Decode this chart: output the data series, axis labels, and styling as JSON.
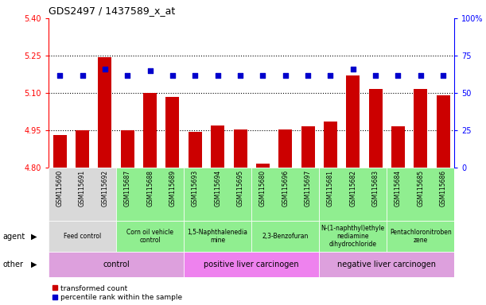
{
  "title": "GDS2497 / 1437589_x_at",
  "samples": [
    "GSM115690",
    "GSM115691",
    "GSM115692",
    "GSM115687",
    "GSM115688",
    "GSM115689",
    "GSM115693",
    "GSM115694",
    "GSM115695",
    "GSM115680",
    "GSM115696",
    "GSM115697",
    "GSM115681",
    "GSM115682",
    "GSM115683",
    "GSM115684",
    "GSM115685",
    "GSM115686"
  ],
  "bar_values": [
    4.93,
    4.95,
    5.245,
    4.95,
    5.1,
    5.085,
    4.945,
    4.97,
    4.955,
    4.815,
    4.955,
    4.965,
    4.985,
    5.17,
    5.115,
    4.965,
    5.115,
    5.09
  ],
  "percentile_values": [
    62,
    62,
    66,
    62,
    65,
    62,
    62,
    62,
    62,
    62,
    62,
    62,
    62,
    66,
    62,
    62,
    62,
    62
  ],
  "ylim_left": [
    4.8,
    5.4
  ],
  "ylim_right": [
    0,
    100
  ],
  "yticks_left": [
    4.8,
    4.95,
    5.1,
    5.25,
    5.4
  ],
  "yticks_right": [
    0,
    25,
    50,
    75,
    100
  ],
  "bar_color": "#cc0000",
  "dot_color": "#0000cc",
  "grid_values": [
    4.95,
    5.1,
    5.25
  ],
  "agent_groups": [
    {
      "label": "Feed control",
      "start": 0,
      "end": 3,
      "color": "#d9d9d9"
    },
    {
      "label": "Corn oil vehicle\ncontrol",
      "start": 3,
      "end": 6,
      "color": "#90ee90"
    },
    {
      "label": "1,5-Naphthalenedia\nmine",
      "start": 6,
      "end": 9,
      "color": "#90ee90"
    },
    {
      "label": "2,3-Benzofuran",
      "start": 9,
      "end": 12,
      "color": "#90ee90"
    },
    {
      "label": "N-(1-naphthyl)ethyle\nnediamine\ndihydrochloride",
      "start": 12,
      "end": 15,
      "color": "#90ee90"
    },
    {
      "label": "Pentachloronitroben\nzene",
      "start": 15,
      "end": 18,
      "color": "#90ee90"
    }
  ],
  "other_groups": [
    {
      "label": "control",
      "start": 0,
      "end": 6,
      "color": "#dda0dd"
    },
    {
      "label": "positive liver carcinogen",
      "start": 6,
      "end": 12,
      "color": "#ee82ee"
    },
    {
      "label": "negative liver carcinogen",
      "start": 12,
      "end": 18,
      "color": "#dda0dd"
    }
  ],
  "legend_items": [
    {
      "label": "transformed count",
      "color": "#cc0000"
    },
    {
      "label": "percentile rank within the sample",
      "color": "#0000cc"
    }
  ]
}
